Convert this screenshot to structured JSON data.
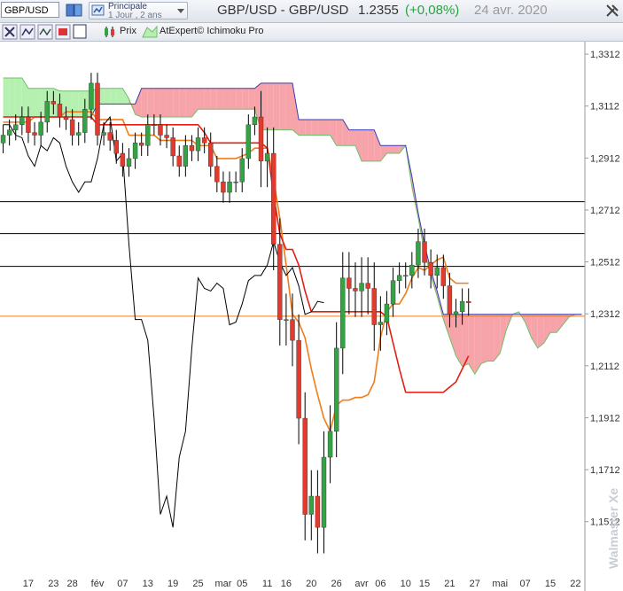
{
  "header": {
    "symbol": "GBP/USD",
    "view": "Principale",
    "period": "1 Jour , 2 ans",
    "title": "GBP/USD - GBP/USD",
    "price": "1.2355",
    "change": "(+0,08%)",
    "date": "24 avr. 2020"
  },
  "legend": [
    "Prix",
    "AtExpert© Ichimoku Pro"
  ],
  "watermark": "Walmaster Xe",
  "chart_data": {
    "type": "candlestick",
    "categories": [
      null,
      null,
      null,
      null,
      "17",
      null,
      null,
      null,
      "23",
      null,
      null,
      "28",
      null,
      null,
      null,
      "fév",
      null,
      null,
      null,
      "07",
      null,
      null,
      null,
      "13",
      null,
      null,
      null,
      "19",
      null,
      null,
      null,
      "25",
      null,
      null,
      null,
      "mar",
      null,
      null,
      "05",
      null,
      null,
      null,
      "11",
      null,
      null,
      "16",
      null,
      null,
      null,
      "20",
      null,
      null,
      null,
      "26",
      null,
      null,
      null,
      "avr",
      null,
      null,
      "06",
      null,
      null,
      null,
      "10",
      null,
      null,
      "15",
      null,
      null,
      null,
      "21",
      null,
      null,
      null,
      "27",
      null,
      null,
      null,
      "mai",
      null,
      null,
      null,
      "07",
      null,
      null,
      null,
      "15",
      null,
      null,
      null,
      "22",
      null
    ],
    "open": [
      1.297,
      1.3,
      1.302,
      1.304,
      1.307,
      1.301,
      1.3,
      1.305,
      1.313,
      1.312,
      1.307,
      1.306,
      1.3,
      1.301,
      1.31,
      1.32,
      1.3,
      1.301,
      1.298,
      1.293,
      1.288,
      1.291,
      1.297,
      1.296,
      1.304,
      1.304,
      1.3,
      1.299,
      1.292,
      1.288,
      1.296,
      1.294,
      1.299,
      1.297,
      1.288,
      1.282,
      1.278,
      1.282,
      1.282,
      1.291,
      1.304,
      1.307,
      1.29,
      1.293,
      1.258,
      1.229,
      1.229,
      1.221,
      1.191,
      1.154,
      1.161,
      1.149,
      1.176,
      1.186,
      1.218,
      1.245,
      1.241,
      1.24,
      1.243,
      1.241,
      1.227,
      1.228,
      1.235,
      1.244,
      1.246,
      1.246,
      1.25,
      1.259,
      1.251,
      1.246,
      1.249,
      1.242,
      1.231,
      1.232,
      1.236,
      null,
      null,
      null,
      null,
      null,
      null,
      null,
      null,
      null,
      null,
      null,
      null,
      null,
      null,
      null,
      null,
      null,
      null
    ],
    "high": [
      1.304,
      1.306,
      1.308,
      1.311,
      1.311,
      1.305,
      1.309,
      1.317,
      1.317,
      1.316,
      1.311,
      1.31,
      1.305,
      1.314,
      1.324,
      1.324,
      1.305,
      1.305,
      1.302,
      1.297,
      1.295,
      1.301,
      1.301,
      1.308,
      1.308,
      1.308,
      1.304,
      1.303,
      1.296,
      1.3,
      1.3,
      1.303,
      1.303,
      1.301,
      1.292,
      1.286,
      1.286,
      1.286,
      1.295,
      1.308,
      1.311,
      1.317,
      1.303,
      1.303,
      1.268,
      1.239,
      1.239,
      1.231,
      1.201,
      1.171,
      1.171,
      1.186,
      1.196,
      1.228,
      1.255,
      1.255,
      1.251,
      1.253,
      1.253,
      1.251,
      1.238,
      1.24,
      1.249,
      1.251,
      1.251,
      1.255,
      1.264,
      1.264,
      1.256,
      1.254,
      1.254,
      1.247,
      1.237,
      1.241,
      1.241,
      null,
      null,
      null,
      null,
      null,
      null,
      null,
      null,
      null,
      null,
      null,
      null,
      null,
      null,
      null,
      null,
      null,
      null
    ],
    "low": [
      1.293,
      1.296,
      1.298,
      1.3,
      1.297,
      1.296,
      1.296,
      1.301,
      1.308,
      1.303,
      1.302,
      1.296,
      1.296,
      1.297,
      1.306,
      1.296,
      1.296,
      1.294,
      1.289,
      1.284,
      1.284,
      1.287,
      1.292,
      1.292,
      1.3,
      1.296,
      1.295,
      1.288,
      1.284,
      1.284,
      1.29,
      1.29,
      1.293,
      1.284,
      1.278,
      1.274,
      1.274,
      1.278,
      1.278,
      1.287,
      1.3,
      1.28,
      1.28,
      1.248,
      1.219,
      1.219,
      1.211,
      1.181,
      1.144,
      1.144,
      1.139,
      1.139,
      1.166,
      1.176,
      1.208,
      1.231,
      1.23,
      1.23,
      1.231,
      1.217,
      1.217,
      1.223,
      1.23,
      1.239,
      1.241,
      1.241,
      1.245,
      1.246,
      1.241,
      1.241,
      1.237,
      1.226,
      1.226,
      1.227,
      1.2305,
      null,
      null,
      null,
      null,
      null,
      null,
      null,
      null,
      null,
      null,
      null,
      null,
      null,
      null,
      null,
      null,
      null,
      null
    ],
    "close": [
      1.3,
      1.302,
      1.304,
      1.307,
      1.301,
      1.3,
      1.305,
      1.313,
      1.312,
      1.307,
      1.306,
      1.3,
      1.301,
      1.31,
      1.32,
      1.3,
      1.301,
      1.298,
      1.293,
      1.288,
      1.291,
      1.297,
      1.296,
      1.304,
      1.304,
      1.3,
      1.299,
      1.292,
      1.288,
      1.296,
      1.294,
      1.299,
      1.297,
      1.288,
      1.282,
      1.278,
      1.282,
      1.282,
      1.291,
      1.304,
      1.307,
      1.29,
      1.293,
      1.258,
      1.229,
      1.229,
      1.221,
      1.191,
      1.154,
      1.161,
      1.149,
      1.176,
      1.186,
      1.218,
      1.245,
      1.241,
      1.24,
      1.243,
      1.241,
      1.227,
      1.228,
      1.235,
      1.244,
      1.246,
      1.246,
      1.25,
      1.259,
      1.251,
      1.246,
      1.249,
      1.242,
      1.231,
      1.232,
      1.236,
      1.2355,
      null,
      null,
      null,
      null,
      null,
      null,
      null,
      null,
      null,
      null,
      null,
      null,
      null,
      null,
      null,
      null,
      null,
      null
    ],
    "up_color": "#34a343",
    "down_color": "#e23b2e",
    "lines": [
      {
        "color": "#f07d1a",
        "values": [
          1.305,
          1.305,
          1.305,
          1.305,
          1.305,
          1.307,
          1.307,
          1.307,
          1.307,
          1.307,
          1.309,
          1.309,
          1.309,
          1.309,
          1.309,
          1.306,
          1.306,
          1.306,
          1.306,
          1.306,
          1.3,
          1.3,
          1.3,
          1.3,
          1.3,
          1.298,
          1.298,
          1.298,
          1.298,
          1.298,
          1.298,
          1.296,
          1.296,
          1.296,
          1.291,
          1.291,
          1.291,
          1.291,
          1.292,
          1.293,
          1.295,
          1.295,
          1.295,
          1.283,
          1.268,
          1.25,
          1.231,
          1.228,
          1.222,
          1.21,
          1.2,
          1.191,
          1.186,
          1.196,
          1.198,
          1.198,
          1.199,
          1.199,
          1.2,
          1.205,
          1.222,
          1.232,
          1.235,
          1.235,
          1.239,
          1.245,
          1.249,
          1.248,
          1.25,
          1.252,
          1.253,
          1.245,
          1.243,
          1.243,
          1.243,
          null,
          null,
          null,
          null,
          null,
          null,
          null,
          null,
          null,
          null,
          null,
          null,
          null,
          null,
          null,
          null,
          null,
          null
        ]
      },
      {
        "color": "#e41e10",
        "values": [
          1.307,
          1.307,
          1.307,
          1.307,
          1.307,
          1.307,
          1.307,
          1.307,
          1.307,
          1.307,
          1.307,
          1.307,
          1.307,
          1.307,
          1.307,
          1.304,
          1.304,
          1.304,
          1.304,
          1.304,
          1.304,
          1.304,
          1.304,
          1.304,
          1.304,
          1.304,
          1.304,
          1.304,
          1.304,
          1.304,
          1.304,
          1.304,
          1.301,
          1.297,
          1.297,
          1.297,
          1.297,
          1.297,
          1.297,
          1.297,
          1.297,
          1.297,
          1.295,
          1.277,
          1.262,
          1.256,
          1.256,
          1.25,
          1.24,
          1.232,
          1.232,
          1.232,
          1.232,
          1.232,
          1.232,
          1.232,
          1.232,
          1.232,
          1.232,
          1.232,
          1.232,
          1.23,
          1.22,
          1.21,
          1.201,
          1.201,
          1.201,
          1.201,
          1.201,
          1.201,
          1.201,
          1.203,
          1.205,
          1.21,
          1.215,
          null,
          null,
          null,
          null,
          null,
          null,
          null,
          null,
          null,
          null,
          null,
          null,
          null,
          null,
          null,
          null,
          null,
          null
        ]
      },
      {
        "color": "#000000",
        "values": [
          1.304,
          1.304,
          1.3,
          1.299,
          1.292,
          1.288,
          1.296,
          1.294,
          1.299,
          1.297,
          1.288,
          1.282,
          1.278,
          1.282,
          1.282,
          1.291,
          1.304,
          1.307,
          1.29,
          1.293,
          1.258,
          1.229,
          1.229,
          1.221,
          1.191,
          1.154,
          1.161,
          1.149,
          1.176,
          1.186,
          1.218,
          1.245,
          1.241,
          1.24,
          1.243,
          1.241,
          1.227,
          1.228,
          1.235,
          1.244,
          1.246,
          1.246,
          1.25,
          1.259,
          1.251,
          1.246,
          1.249,
          1.242,
          1.231,
          1.232,
          1.236,
          1.2355,
          null,
          null,
          null,
          null,
          null,
          null,
          null,
          null,
          null,
          null,
          null,
          null,
          null,
          null,
          null,
          null,
          null,
          null,
          null,
          null,
          null,
          null,
          null,
          null,
          null,
          null,
          null,
          null,
          null,
          null,
          null,
          null,
          null,
          null,
          null,
          null,
          null,
          null,
          null,
          null,
          null
        ]
      }
    ],
    "cloud": {
      "span_a": [
        1.322,
        1.322,
        1.322,
        1.322,
        1.318,
        1.318,
        1.318,
        1.318,
        1.318,
        1.317,
        1.317,
        1.317,
        1.317,
        1.317,
        1.317,
        1.318,
        1.318,
        1.318,
        1.318,
        1.318,
        1.314,
        1.308,
        1.307,
        1.307,
        1.307,
        1.307,
        1.307,
        1.307,
        1.307,
        1.307,
        1.307,
        1.31,
        1.31,
        1.31,
        1.31,
        1.31,
        1.31,
        1.31,
        1.31,
        1.31,
        1.31,
        1.302,
        1.302,
        1.302,
        1.302,
        1.302,
        1.302,
        1.3,
        1.3,
        1.3,
        1.3,
        1.3,
        1.3,
        1.296,
        1.296,
        1.296,
        1.296,
        1.29,
        1.29,
        1.29,
        1.29,
        1.293,
        1.293,
        1.293,
        1.296,
        1.28,
        1.268,
        1.255,
        1.246,
        1.238,
        1.229,
        1.222,
        1.215,
        1.211,
        1.212,
        1.208,
        1.212,
        1.213,
        1.213,
        1.216,
        1.225,
        1.231,
        1.232,
        1.228,
        1.222,
        1.218,
        1.22,
        1.224,
        1.224,
        1.227,
        1.23,
        1.231,
        1.231
      ],
      "span_b": [
        1.307,
        1.307,
        1.307,
        1.307,
        1.307,
        1.307,
        1.307,
        1.307,
        1.307,
        1.307,
        1.307,
        1.307,
        1.307,
        1.307,
        1.307,
        1.312,
        1.312,
        1.312,
        1.312,
        1.312,
        1.312,
        1.312,
        1.318,
        1.318,
        1.318,
        1.318,
        1.318,
        1.318,
        1.318,
        1.318,
        1.318,
        1.318,
        1.318,
        1.318,
        1.318,
        1.318,
        1.318,
        1.318,
        1.318,
        1.318,
        1.318,
        1.32,
        1.32,
        1.32,
        1.32,
        1.32,
        1.32,
        1.306,
        1.306,
        1.306,
        1.306,
        1.306,
        1.306,
        1.306,
        1.306,
        1.302,
        1.302,
        1.302,
        1.302,
        1.302,
        1.296,
        1.296,
        1.296,
        1.296,
        1.296,
        1.284,
        1.27,
        1.258,
        1.248,
        1.24,
        1.231,
        1.231,
        1.231,
        1.231,
        1.231,
        1.231,
        1.231,
        1.231,
        1.231,
        1.231,
        1.231,
        1.231,
        1.231,
        1.231,
        1.231,
        1.231,
        1.231,
        1.231,
        1.231,
        1.231,
        1.231,
        1.231,
        1.231
      ],
      "up_color": "#b5f0b0",
      "down_color": "#f6a3aa",
      "a_color": "#6fbf6a",
      "b_color": "#3b3bb8"
    },
    "hlines": [
      {
        "value": 1.2744,
        "color": "#000000"
      },
      {
        "value": 1.2621,
        "color": "#000000"
      },
      {
        "value": 1.2495,
        "color": "#000000"
      },
      {
        "value": 1.2303,
        "color": "#f07d1a"
      }
    ],
    "ylim": [
      1.132,
      1.336
    ],
    "yticks": [
      {
        "value": 1.3312,
        "label": "1,3312"
      },
      {
        "value": 1.3112,
        "label": "1,3112"
      },
      {
        "value": 1.2912,
        "label": "1,2912"
      },
      {
        "value": 1.2712,
        "label": "1,2712"
      },
      {
        "value": 1.2512,
        "label": "1,2512"
      },
      {
        "value": 1.2312,
        "label": "1,2312"
      },
      {
        "value": 1.2112,
        "label": "1,2112"
      },
      {
        "value": 1.1912,
        "label": "1,1912"
      },
      {
        "value": 1.1712,
        "label": "1,1712"
      },
      {
        "value": 1.1512,
        "label": "1,1512"
      }
    ]
  }
}
